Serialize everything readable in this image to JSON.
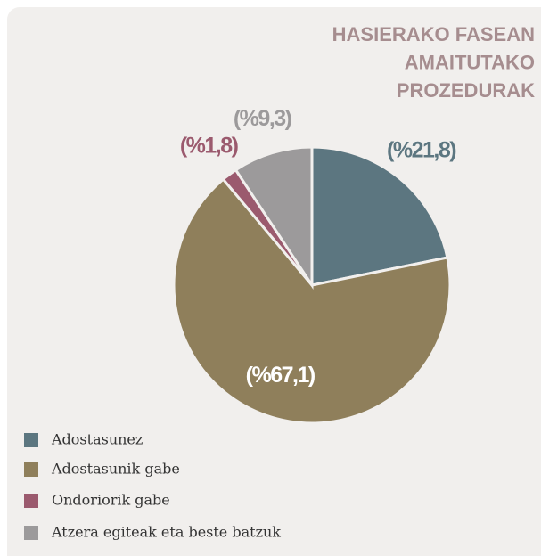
{
  "chart_data": {
    "type": "pie",
    "title": [
      "HASIERAKO FASEAN",
      "AMAITUTAKO",
      "PROZEDURAK"
    ],
    "categories": [
      "Adostasunez",
      "Adostasunik gabe",
      "Ondoriorik gabe",
      "Atzera egiteak eta beste batzuk"
    ],
    "values": [
      21.8,
      67.1,
      1.8,
      9.3
    ],
    "value_labels": [
      "(%21,8)",
      "(%67,1)",
      "(%1,8)",
      "(%9,3)"
    ],
    "colors": [
      "#5c7680",
      "#8f7f5b",
      "#9b5a6e",
      "#9c9a9b"
    ],
    "legend": "bottom-left"
  }
}
